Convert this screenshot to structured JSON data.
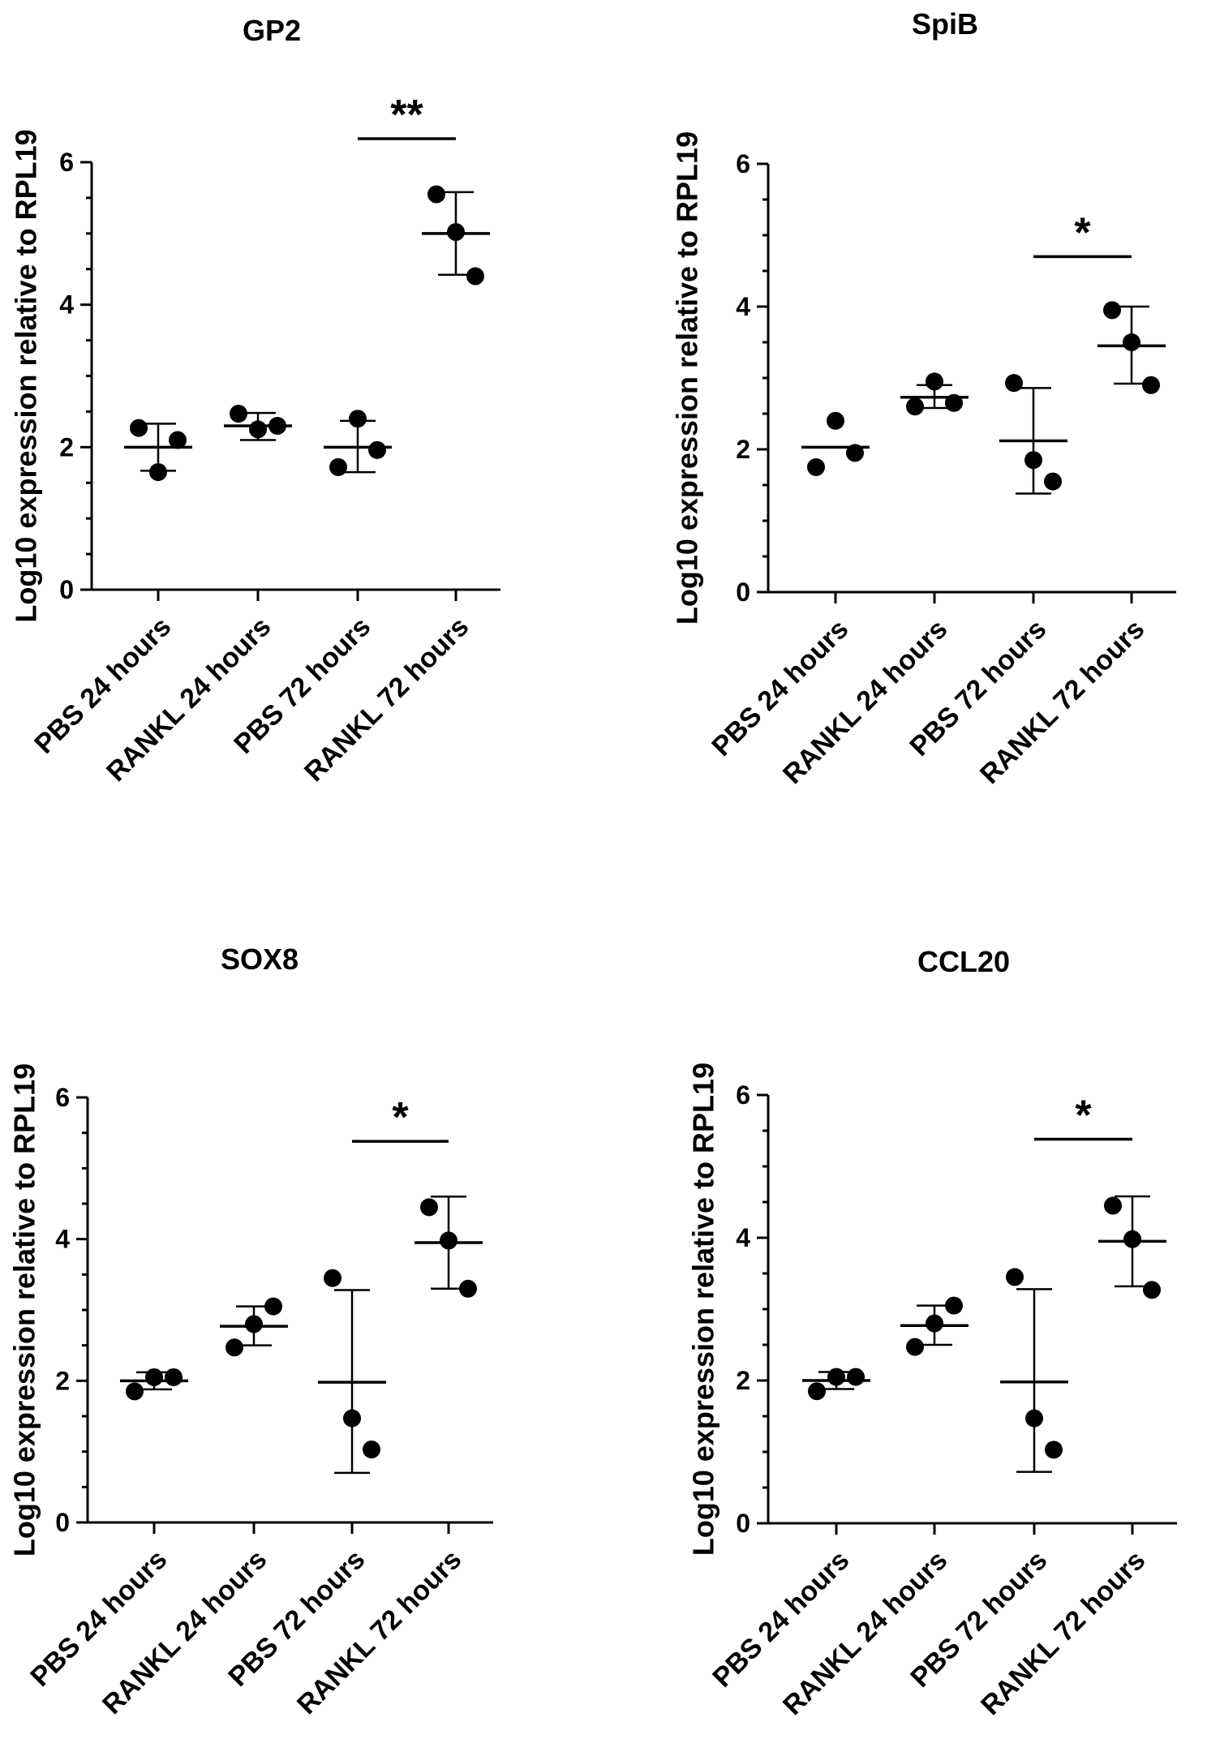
{
  "chart_data": [
    {
      "type": "scatter",
      "title": "GP2",
      "ylabel": "Log10 expression relative to RPL19",
      "xlabel": "",
      "ylim": [
        0,
        6
      ],
      "yticks": [
        "0",
        "2",
        "4",
        "6"
      ],
      "categories": [
        "PBS 24 hours",
        "RANKL 24 hours",
        "PBS 72 hours",
        "RANKL 72 hours"
      ],
      "points": [
        [
          2.27,
          1.65,
          2.1
        ],
        [
          2.47,
          2.25,
          2.3
        ],
        [
          1.72,
          2.4,
          1.96
        ],
        [
          5.55,
          5.02,
          4.4
        ]
      ],
      "mean": [
        2.0,
        2.3,
        2.0,
        5.0
      ],
      "err_low": [
        1.67,
        2.1,
        1.65,
        4.42
      ],
      "err_high": [
        2.33,
        2.48,
        2.37,
        5.58
      ],
      "significance": {
        "label": "**",
        "from": 2,
        "to": 3,
        "y": 6.33
      }
    },
    {
      "type": "scatter",
      "title": "SpiB",
      "ylabel": "Log10 expression relative to RPL19",
      "xlabel": "",
      "ylim": [
        0,
        6
      ],
      "yticks": [
        "0",
        "2",
        "4",
        "6"
      ],
      "categories": [
        "PBS 24 hours",
        "RANKL 24 hours",
        "PBS 72 hours",
        "RANKL 72 hours"
      ],
      "points": [
        [
          1.75,
          2.4,
          1.95
        ],
        [
          2.6,
          2.95,
          2.65
        ],
        [
          2.93,
          1.85,
          1.55
        ],
        [
          3.95,
          3.5,
          2.9
        ]
      ],
      "mean": [
        2.03,
        2.73,
        2.12,
        3.45
      ],
      "err_low": [
        2.03,
        2.58,
        1.38,
        2.92
      ],
      "err_high": [
        2.03,
        2.9,
        2.86,
        4.0
      ],
      "significance": {
        "label": "*",
        "from": 2,
        "to": 3,
        "y": 4.7
      }
    },
    {
      "type": "scatter",
      "title": "SOX8",
      "ylabel": "Log10 expression relative to RPL19",
      "xlabel": "",
      "ylim": [
        0,
        6
      ],
      "yticks": [
        "0",
        "2",
        "4",
        "6"
      ],
      "categories": [
        "PBS 24 hours",
        "RANKL 24 hours",
        "PBS 72 hours",
        "RANKL 72 hours"
      ],
      "points": [
        [
          1.85,
          2.05,
          2.05
        ],
        [
          2.47,
          2.8,
          3.05
        ],
        [
          3.45,
          1.47,
          1.03
        ],
        [
          4.45,
          3.98,
          3.3
        ]
      ],
      "mean": [
        2.0,
        2.77,
        1.98,
        3.95
      ],
      "err_low": [
        1.88,
        2.5,
        0.7,
        3.3
      ],
      "err_high": [
        2.12,
        3.05,
        3.28,
        4.6
      ],
      "significance": {
        "label": "*",
        "from": 2,
        "to": 3,
        "y": 5.38
      }
    },
    {
      "type": "scatter",
      "title": "CCL20",
      "ylabel": "Log10 expression relative to RPL19",
      "xlabel": "",
      "ylim": [
        0,
        6
      ],
      "yticks": [
        "0",
        "2",
        "4",
        "6"
      ],
      "categories": [
        "PBS 24 hours",
        "RANKL 24 hours",
        "PBS 72 hours",
        "RANKL 72 hours"
      ],
      "points": [
        [
          1.85,
          2.05,
          2.05
        ],
        [
          2.47,
          2.8,
          3.05
        ],
        [
          3.45,
          1.47,
          1.03
        ],
        [
          4.45,
          3.98,
          3.27
        ]
      ],
      "mean": [
        2.0,
        2.77,
        1.98,
        3.95
      ],
      "err_low": [
        1.88,
        2.5,
        0.72,
        3.32
      ],
      "err_high": [
        2.12,
        3.05,
        3.28,
        4.58
      ],
      "significance": {
        "label": "*",
        "from": 2,
        "to": 3,
        "y": 5.38
      }
    }
  ]
}
